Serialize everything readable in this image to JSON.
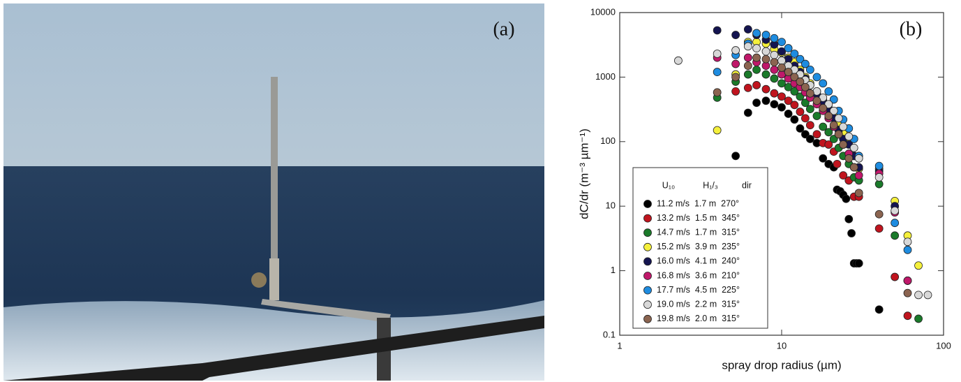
{
  "photo": {
    "label": "(a)"
  },
  "chart_data": {
    "type": "scatter",
    "panel_label": "(b)",
    "x_label": "spray drop radius (µm)",
    "y_label": "dC/dr  (m⁻³ µm⁻¹)",
    "log_x": true,
    "log_y": true,
    "xlim": [
      1,
      100
    ],
    "xticks": [
      1,
      10,
      100
    ],
    "ylim": [
      0.1,
      10000
    ],
    "yticks": [
      0.1,
      1,
      10,
      100,
      1000,
      10000
    ],
    "legend_title": [
      "U₁₀",
      "H₁/₃",
      "dir"
    ],
    "legend": "lower-left",
    "series": [
      {
        "name": "11.2 m/s  1.7 m  270°",
        "color": "#000000",
        "x": [
          5.2,
          6.2,
          7,
          8,
          9,
          10,
          11,
          12,
          13,
          14,
          15,
          16.5,
          18,
          19.5,
          21,
          22,
          23,
          24,
          25,
          26,
          27,
          28,
          29,
          30,
          40
        ],
        "values": [
          60,
          280,
          400,
          430,
          380,
          340,
          270,
          220,
          160,
          130,
          110,
          95,
          55,
          45,
          40,
          18,
          17,
          15,
          13,
          6.3,
          3.8,
          1.3,
          1.3,
          1.3,
          0.25
        ]
      },
      {
        "name": "13.2 m/s  1.5 m  345°",
        "color": "#c0141e",
        "x": [
          5.2,
          6.2,
          7,
          8,
          9,
          10,
          11,
          12,
          13,
          14,
          15,
          16.5,
          18,
          19.5,
          21,
          22,
          24,
          26,
          28,
          30,
          40,
          50,
          60
        ],
        "values": [
          600,
          680,
          750,
          650,
          560,
          500,
          430,
          370,
          290,
          230,
          180,
          130,
          95,
          90,
          70,
          45,
          30,
          25,
          14,
          14,
          4.5,
          0.8,
          0.2
        ]
      },
      {
        "name": "14.7 m/s  1.7 m  315°",
        "color": "#1a7a2a",
        "x": [
          4,
          5.2,
          6.2,
          7,
          8,
          9,
          10,
          11,
          12,
          13,
          14,
          15,
          16.5,
          18,
          19.5,
          21,
          22.5,
          24,
          26,
          28,
          30,
          40,
          50,
          60,
          70
        ],
        "values": [
          480,
          850,
          1100,
          1300,
          1100,
          950,
          800,
          700,
          600,
          500,
          400,
          320,
          250,
          170,
          140,
          110,
          80,
          60,
          45,
          28,
          25,
          22,
          3.5,
          0.7,
          0.18
        ]
      },
      {
        "name": "15.2 m/s  3.9 m  235°",
        "color": "#f5f03c",
        "x": [
          4,
          5.2,
          6.2,
          7,
          8,
          9,
          10,
          11,
          12,
          13,
          14,
          15,
          16.5,
          18,
          19.5,
          21,
          22.5,
          24,
          26,
          28,
          30,
          40,
          50,
          60,
          70
        ],
        "values": [
          150,
          1100,
          3500,
          3500,
          3300,
          2700,
          2400,
          2000,
          1700,
          1300,
          1000,
          800,
          600,
          450,
          330,
          280,
          200,
          140,
          100,
          60,
          38,
          38,
          12,
          3.5,
          1.2
        ]
      },
      {
        "name": "16.0 m/s  4.1 m  240°",
        "color": "#141450",
        "x": [
          4,
          5.2,
          6.2,
          7,
          8,
          9,
          10,
          11,
          12,
          13,
          14,
          15,
          16.5,
          18,
          19.5,
          21,
          22.5,
          24,
          26,
          28,
          30,
          40,
          50,
          60
        ],
        "values": [
          5300,
          4500,
          5500,
          4500,
          3800,
          3200,
          2500,
          1900,
          1500,
          1200,
          950,
          750,
          550,
          420,
          320,
          230,
          150,
          110,
          90,
          60,
          40,
          35,
          10,
          0.7
        ]
      },
      {
        "name": "16.8 m/s  3.6 m  210°",
        "color": "#c0186a",
        "x": [
          4,
          5.2,
          6.2,
          7,
          8,
          9,
          10,
          11,
          12,
          13,
          14,
          15,
          16.5,
          18,
          19.5,
          21,
          22.5,
          24,
          26,
          28,
          30,
          40,
          50,
          60
        ],
        "values": [
          2000,
          1600,
          2000,
          1700,
          1500,
          1300,
          1100,
          950,
          800,
          700,
          580,
          480,
          380,
          300,
          230,
          170,
          130,
          90,
          65,
          40,
          30,
          32,
          8,
          0.7
        ]
      },
      {
        "name": "17.7 m/s  4.5 m  225°",
        "color": "#1e8ce0",
        "x": [
          4,
          5.2,
          6.2,
          7,
          8,
          9,
          10,
          11,
          12,
          13,
          14,
          15,
          16.5,
          18,
          19.5,
          21,
          22.5,
          24,
          26,
          28,
          30,
          40,
          50,
          60
        ],
        "values": [
          1200,
          2200,
          3300,
          4800,
          4500,
          4000,
          3500,
          2800,
          2300,
          1900,
          1600,
          1300,
          1000,
          800,
          600,
          450,
          300,
          220,
          160,
          110,
          60,
          42,
          5.5,
          2.1
        ]
      },
      {
        "name": "19.0 m/s  2.2 m  315°",
        "color": "#d8d8d8",
        "x": [
          2.3,
          4,
          5.2,
          6.2,
          7,
          8,
          9,
          10,
          11,
          12,
          13,
          14,
          15,
          16.5,
          18,
          19.5,
          21,
          22.5,
          24,
          26,
          28,
          30,
          40,
          50,
          60,
          70,
          80
        ],
        "values": [
          1800,
          2300,
          2600,
          3000,
          2800,
          2500,
          2200,
          1800,
          1500,
          1300,
          1100,
          900,
          750,
          600,
          480,
          380,
          300,
          230,
          170,
          120,
          80,
          55,
          28,
          8.5,
          2.8,
          0.42,
          0.42
        ]
      },
      {
        "name": "19.8 m/s  2.0 m  315°",
        "color": "#8b6450",
        "x": [
          4,
          5.2,
          6.2,
          7,
          8,
          9,
          10,
          11,
          12,
          13,
          14,
          15,
          16.5,
          18,
          19.5,
          21,
          22.5,
          24,
          26,
          28,
          30,
          40,
          60
        ],
        "values": [
          580,
          1000,
          1500,
          2000,
          1900,
          1700,
          1400,
          1200,
          1000,
          850,
          700,
          560,
          430,
          330,
          250,
          180,
          130,
          90,
          55,
          40,
          16,
          7.5,
          0.45
        ]
      }
    ]
  }
}
